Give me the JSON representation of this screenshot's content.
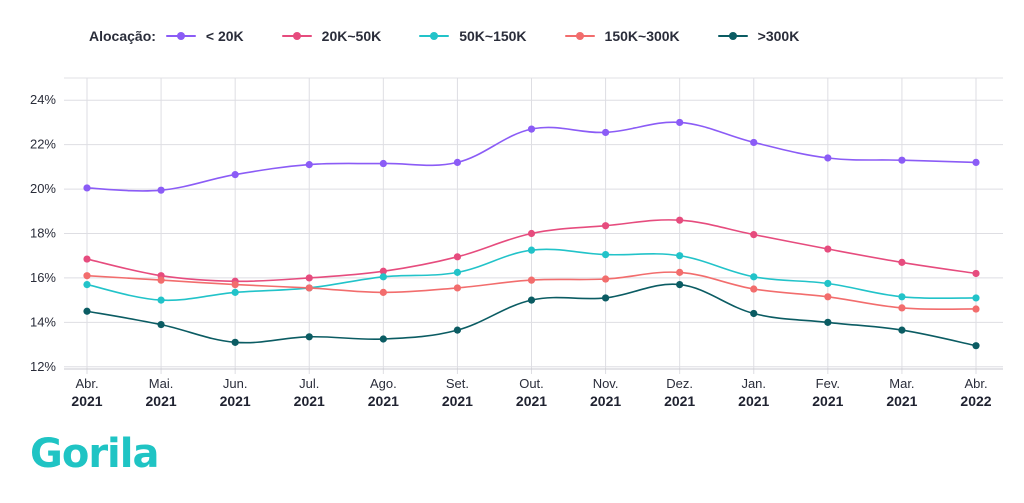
{
  "brand": {
    "name": "Gorila",
    "color": "#1fc4c4"
  },
  "legend": {
    "title": "Alocação:"
  },
  "chart_data": {
    "type": "line",
    "categories": [
      [
        "Abr.",
        "2021"
      ],
      [
        "Mai.",
        "2021"
      ],
      [
        "Jun.",
        "2021"
      ],
      [
        "Jul.",
        "2021"
      ],
      [
        "Ago.",
        "2021"
      ],
      [
        "Set.",
        "2021"
      ],
      [
        "Out.",
        "2021"
      ],
      [
        "Nov.",
        "2021"
      ],
      [
        "Dez.",
        "2021"
      ],
      [
        "Jan.",
        "2021"
      ],
      [
        "Fev.",
        "2021"
      ],
      [
        "Mar.",
        "2021"
      ],
      [
        "Abr.",
        "2022"
      ]
    ],
    "y_ticks": [
      12,
      14,
      16,
      18,
      20,
      22,
      24
    ],
    "y_tick_suffix": "%",
    "ylim": [
      11.9,
      25
    ],
    "grid": true,
    "legend_position": "top-left",
    "series": [
      {
        "name": "< 20K",
        "color": "#8b5cf6",
        "values": [
          20.05,
          19.95,
          20.65,
          21.1,
          21.15,
          21.2,
          22.7,
          22.55,
          23.0,
          22.1,
          21.4,
          21.3,
          21.2
        ]
      },
      {
        "name": "20K~50K",
        "color": "#e64c7e",
        "values": [
          16.85,
          16.1,
          15.85,
          16.0,
          16.3,
          16.95,
          18.0,
          18.35,
          18.6,
          17.95,
          17.3,
          16.7,
          16.2
        ]
      },
      {
        "name": "50K~150K",
        "color": "#22c3c9",
        "values": [
          15.7,
          15.0,
          15.35,
          15.55,
          16.05,
          16.25,
          17.25,
          17.05,
          17.0,
          16.05,
          15.75,
          15.15,
          15.1
        ]
      },
      {
        "name": "150K~300K",
        "color": "#f26d6d",
        "values": [
          16.1,
          15.9,
          15.7,
          15.55,
          15.35,
          15.55,
          15.9,
          15.95,
          16.25,
          15.5,
          15.15,
          14.65,
          14.6
        ]
      },
      {
        "name": ">300K",
        "color": "#0b5c63",
        "values": [
          14.5,
          13.9,
          13.1,
          13.35,
          13.25,
          13.65,
          15.0,
          15.1,
          15.7,
          14.4,
          14.0,
          13.65,
          12.95
        ]
      }
    ]
  }
}
